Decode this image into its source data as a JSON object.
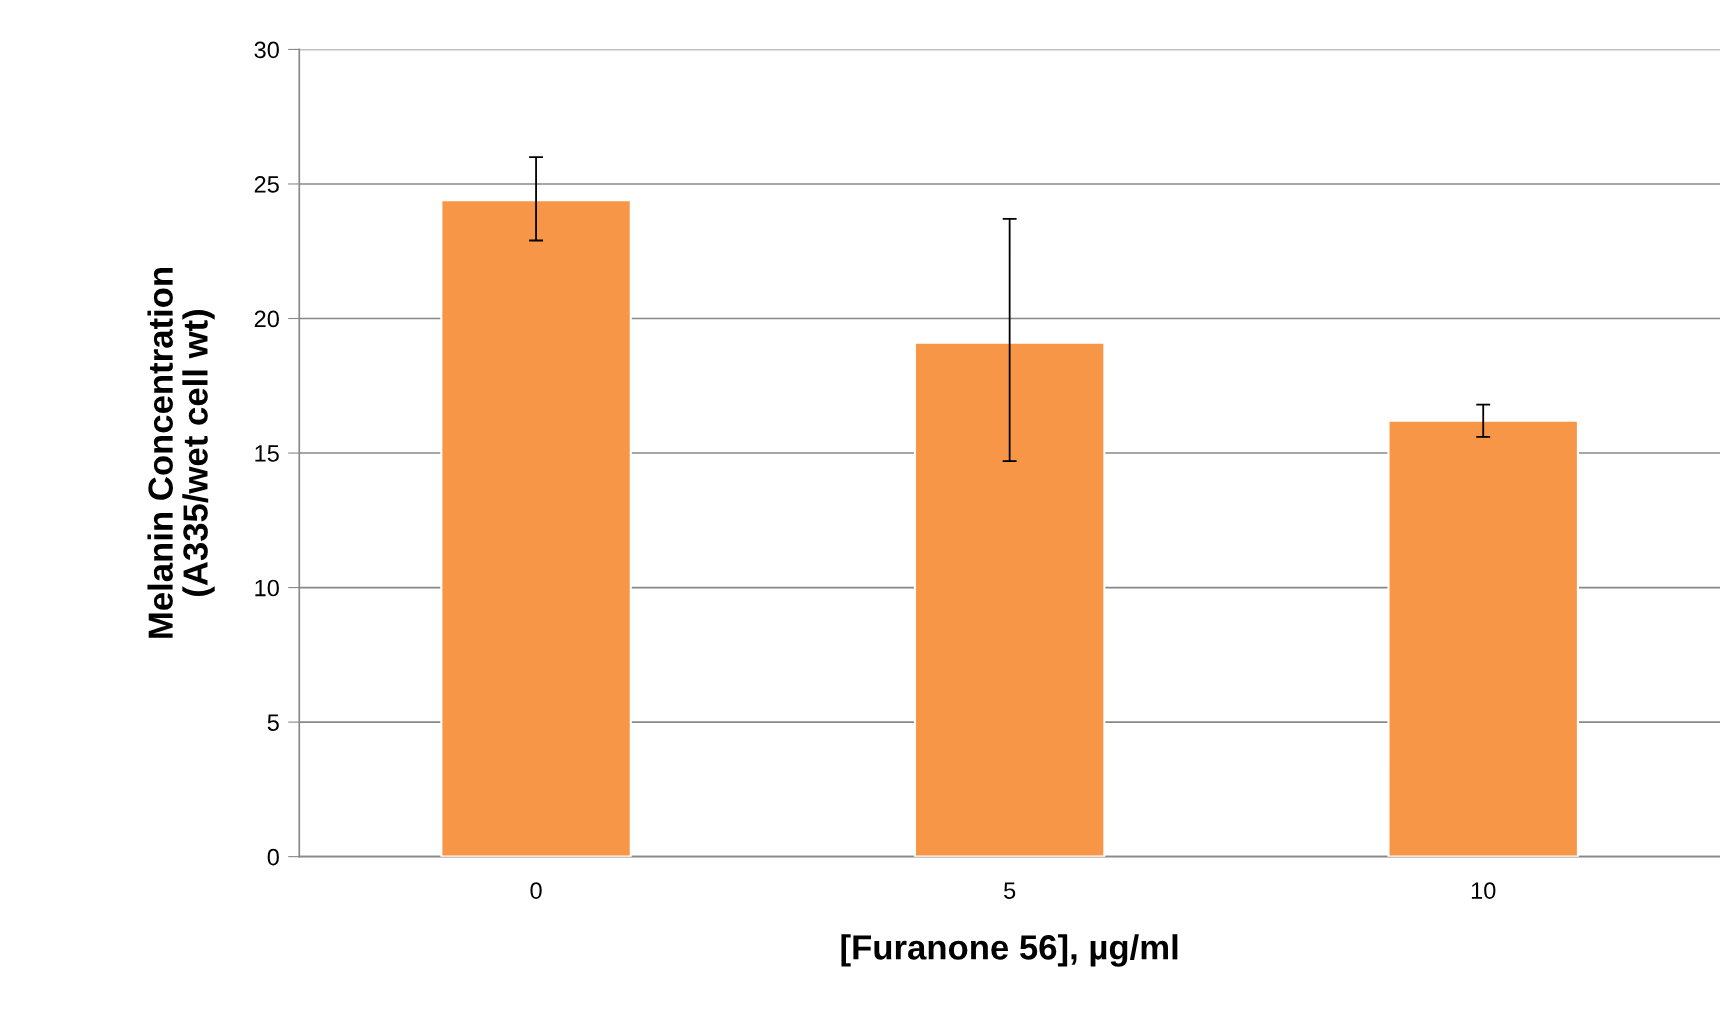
{
  "chart_data": {
    "type": "bar",
    "xlabel": "[Furanone 56], µg/ml",
    "ylabel": "Melanin Concentration\n(A335/wet cell wt)",
    "categories": [
      "0",
      "5",
      "10"
    ],
    "values": [
      24.4,
      19.1,
      16.2
    ],
    "errors": [
      [
        22.9,
        26.0
      ],
      [
        14.7,
        23.7
      ],
      [
        15.6,
        16.8
      ]
    ],
    "color": "#f79646",
    "ylim": [
      0,
      30
    ],
    "yticks": [
      0,
      5,
      10,
      15,
      20,
      25,
      30
    ],
    "grid": "y",
    "legend": false
  }
}
